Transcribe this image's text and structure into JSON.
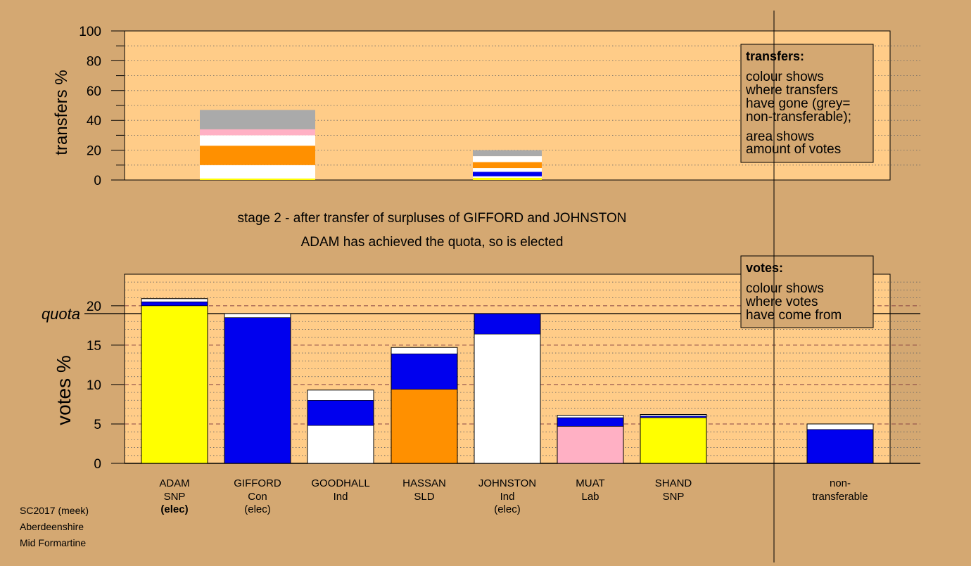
{
  "top_caption": {
    "line1": "stage 2 - after transfer of surpluses of GIFFORD and JOHNSTON",
    "line2": "ADAM has achieved the quota, so is elected"
  },
  "footer": [
    "SC2017 (meek)",
    "Aberdeenshire",
    "Mid Formartine"
  ],
  "legend_transfers": {
    "title": "transfers:",
    "lines": [
      "colour shows",
      "where transfers",
      "have gone (grey=",
      "non-transferable);"
    ],
    "lines2": [
      "area shows",
      "amount of votes"
    ]
  },
  "legend_votes": {
    "title": "votes:",
    "lines": [
      "colour shows",
      "where votes",
      "have come from"
    ]
  },
  "colors": {
    "background": "#D4A872",
    "plot": "#FFCC88",
    "SNP": "#FFFF00",
    "Con": "#0000EE",
    "Ind": "#FFFFFF",
    "SLD": "#FF9000",
    "Lab": "#FFB0C4",
    "nontransferable": "#AAAAAA"
  },
  "chart_data": [
    {
      "type": "bar",
      "ylabel": "transfers %",
      "ylim": [
        0,
        100
      ],
      "yticks": [
        0,
        20,
        40,
        60,
        80,
        100
      ],
      "grid": "dotted every 10",
      "legend_placement": "top-right",
      "bars": [
        {
          "from": "GIFFORD",
          "segments": [
            {
              "party": "SNP",
              "value": 1.0
            },
            {
              "party": "Ind",
              "value": 9.0
            },
            {
              "party": "SLD",
              "value": 13.0
            },
            {
              "party": "Ind",
              "value": 7.0
            },
            {
              "party": "Lab",
              "value": 4.0
            },
            {
              "party": "nontransferable",
              "value": 13.0
            }
          ]
        },
        {
          "from": "JOHNSTON",
          "segments": [
            {
              "party": "SNP",
              "value": 1.5
            },
            {
              "party": "Ind",
              "value": 1.0
            },
            {
              "party": "Con",
              "value": 3.0
            },
            {
              "party": "Ind",
              "value": 2.5
            },
            {
              "party": "SLD",
              "value": 4.0
            },
            {
              "party": "Ind",
              "value": 4.0
            },
            {
              "party": "nontransferable",
              "value": 4.0
            }
          ]
        }
      ]
    },
    {
      "type": "bar",
      "ylabel": "votes %",
      "ylim": [
        0,
        24
      ],
      "yticks": [
        0,
        5,
        10,
        15,
        20
      ],
      "quota": 19.0,
      "quota_label": "quota",
      "grid": "dotted every 1, dashed every 5",
      "legend_placement": "top-right",
      "candidates": [
        {
          "name": "ADAM",
          "party": "SNP",
          "status": "(elec)",
          "bold_status": true,
          "segments": [
            {
              "party": "SNP",
              "value": 20.0
            },
            {
              "party": "Con",
              "value": 0.5
            },
            {
              "party": "Ind",
              "value": 0.4
            }
          ]
        },
        {
          "name": "GIFFORD",
          "party": "Con",
          "status": "(elec)",
          "bold_status": false,
          "segments": [
            {
              "party": "Con",
              "value": 18.5
            },
            {
              "party": "Ind",
              "value": 0.5
            }
          ]
        },
        {
          "name": "GOODHALL",
          "party": "Ind",
          "status": "",
          "bold_status": false,
          "segments": [
            {
              "party": "Ind",
              "value": 4.8
            },
            {
              "party": "Con",
              "value": 3.2
            },
            {
              "party": "Ind",
              "value": 1.3
            }
          ]
        },
        {
          "name": "HASSAN",
          "party": "SLD",
          "status": "",
          "bold_status": false,
          "segments": [
            {
              "party": "SLD",
              "value": 9.4
            },
            {
              "party": "Con",
              "value": 4.5
            },
            {
              "party": "Ind",
              "value": 0.8
            }
          ]
        },
        {
          "name": "JOHNSTON",
          "party": "Ind",
          "status": "(elec)",
          "bold_status": false,
          "segments": [
            {
              "party": "Ind",
              "value": 16.4
            },
            {
              "party": "Con",
              "value": 2.6
            }
          ]
        },
        {
          "name": "MUAT",
          "party": "Lab",
          "status": "",
          "bold_status": false,
          "segments": [
            {
              "party": "Lab",
              "value": 4.7
            },
            {
              "party": "Con",
              "value": 1.1
            },
            {
              "party": "Ind",
              "value": 0.3
            }
          ]
        },
        {
          "name": "SHAND",
          "party": "SNP",
          "status": "",
          "bold_status": false,
          "segments": [
            {
              "party": "SNP",
              "value": 5.8
            },
            {
              "party": "Con",
              "value": 0.2
            },
            {
              "party": "Ind",
              "value": 0.2
            }
          ]
        }
      ],
      "nontransferable": {
        "label1": "non-",
        "label2": "transferable",
        "segments": [
          {
            "party": "Con",
            "value": 4.3
          },
          {
            "party": "Ind",
            "value": 0.7
          }
        ]
      }
    }
  ]
}
